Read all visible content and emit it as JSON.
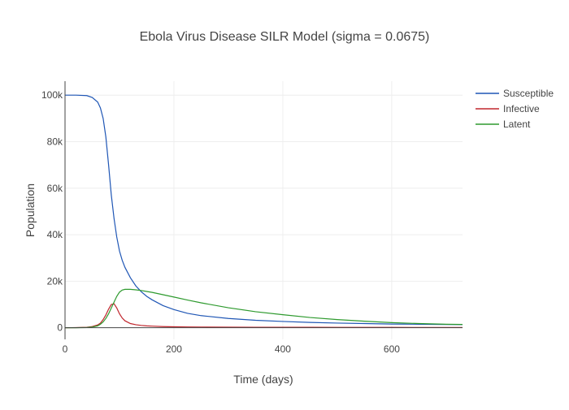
{
  "chart_data": {
    "type": "line",
    "title": "Ebola Virus Disease SILR Model (sigma = 0.0675)",
    "xlabel": "Time (days)",
    "ylabel": "Population",
    "xlim": [
      0,
      730
    ],
    "ylim": [
      -5000,
      106000
    ],
    "x_ticks": [
      0,
      200,
      400,
      600
    ],
    "x_tick_labels": [
      "0",
      "200",
      "400",
      "600"
    ],
    "y_ticks": [
      0,
      20000,
      40000,
      60000,
      80000,
      100000
    ],
    "y_tick_labels": [
      "0",
      "20k",
      "40k",
      "60k",
      "80k",
      "100k"
    ],
    "grid": true,
    "legend_position": "top-right",
    "x": [
      0,
      20,
      40,
      50,
      60,
      65,
      70,
      75,
      80,
      85,
      90,
      95,
      100,
      105,
      110,
      120,
      130,
      140,
      150,
      160,
      180,
      200,
      225,
      250,
      300,
      350,
      400,
      450,
      500,
      550,
      600,
      650,
      700,
      730
    ],
    "series": [
      {
        "name": "Susceptible",
        "color": "#1f56b5",
        "values": [
          100000,
          100000,
          99800,
          99000,
          97000,
          94500,
          90000,
          82000,
          70000,
          57000,
          47000,
          39000,
          33000,
          29000,
          26000,
          21500,
          18000,
          15500,
          13500,
          12000,
          9500,
          7800,
          6200,
          5200,
          4000,
          3200,
          2700,
          2300,
          2000,
          1800,
          1600,
          1500,
          1400,
          1350
        ]
      },
      {
        "name": "Infective",
        "color": "#c0262d",
        "values": [
          0,
          50,
          200,
          500,
          1200,
          2000,
          3500,
          5500,
          8000,
          10000,
          10300,
          8500,
          6000,
          4200,
          3000,
          1800,
          1300,
          1000,
          800,
          700,
          500,
          400,
          350,
          300,
          250,
          220,
          200,
          180,
          160,
          150,
          140,
          130,
          120,
          110
        ]
      },
      {
        "name": "Latent",
        "color": "#2e9a2e",
        "values": [
          0,
          20,
          100,
          300,
          800,
          1500,
          2500,
          4000,
          6000,
          8500,
          11000,
          13500,
          15300,
          16200,
          16500,
          16500,
          16300,
          16000,
          15600,
          15200,
          14200,
          13200,
          11900,
          10700,
          8600,
          6900,
          5600,
          4400,
          3500,
          2800,
          2200,
          1800,
          1500,
          1400
        ]
      }
    ]
  }
}
